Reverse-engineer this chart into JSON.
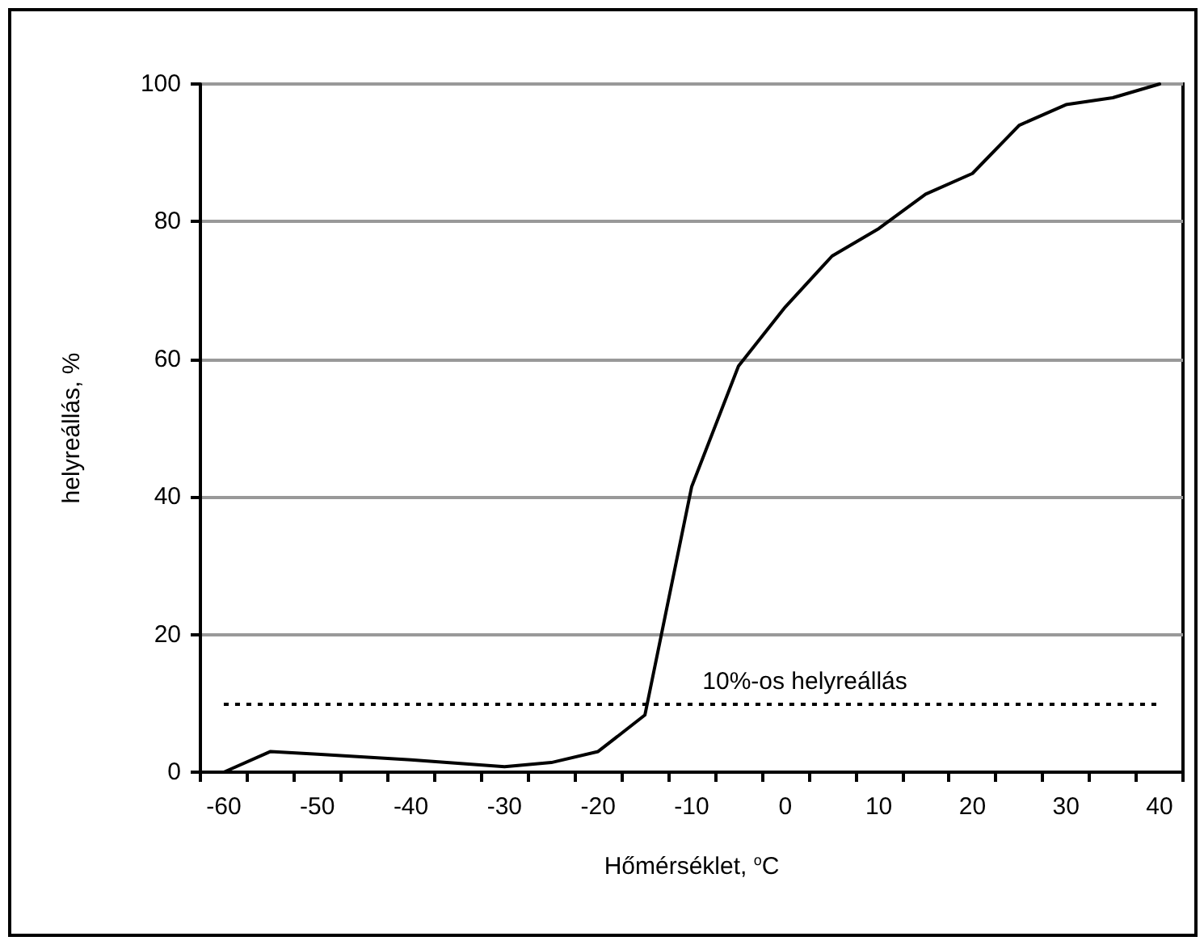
{
  "chart_data": {
    "type": "line",
    "xlabel": "Hőmérséklet, $^{o}$C",
    "ylabel": "helyreállás, %",
    "categories": [
      "-60",
      null,
      "-50",
      null,
      "-40",
      null,
      "-30",
      null,
      "-20",
      null,
      "-10",
      null,
      "0",
      null,
      "10",
      null,
      "20",
      null,
      "30",
      null,
      "40"
    ],
    "series": [
      {
        "color": "#000000",
        "values": [
          0,
          3.0,
          2.6,
          2.2,
          1.8,
          1.3,
          0.8,
          1.4,
          3.0,
          8.3,
          41.5,
          59,
          67.6,
          75,
          79,
          84,
          87,
          94,
          97,
          98,
          100
        ]
      }
    ],
    "ylim": [
      0,
      100
    ],
    "yticks": [
      0,
      20,
      40,
      60,
      80,
      100
    ],
    "grid": "y",
    "marker": "none",
    "line_style": "solid",
    "ref_lines": [
      {
        "axis": "y",
        "value": 10,
        "label": "10%-os helyreállás",
        "color": "#000000",
        "line_style": "dotted"
      }
    ]
  }
}
